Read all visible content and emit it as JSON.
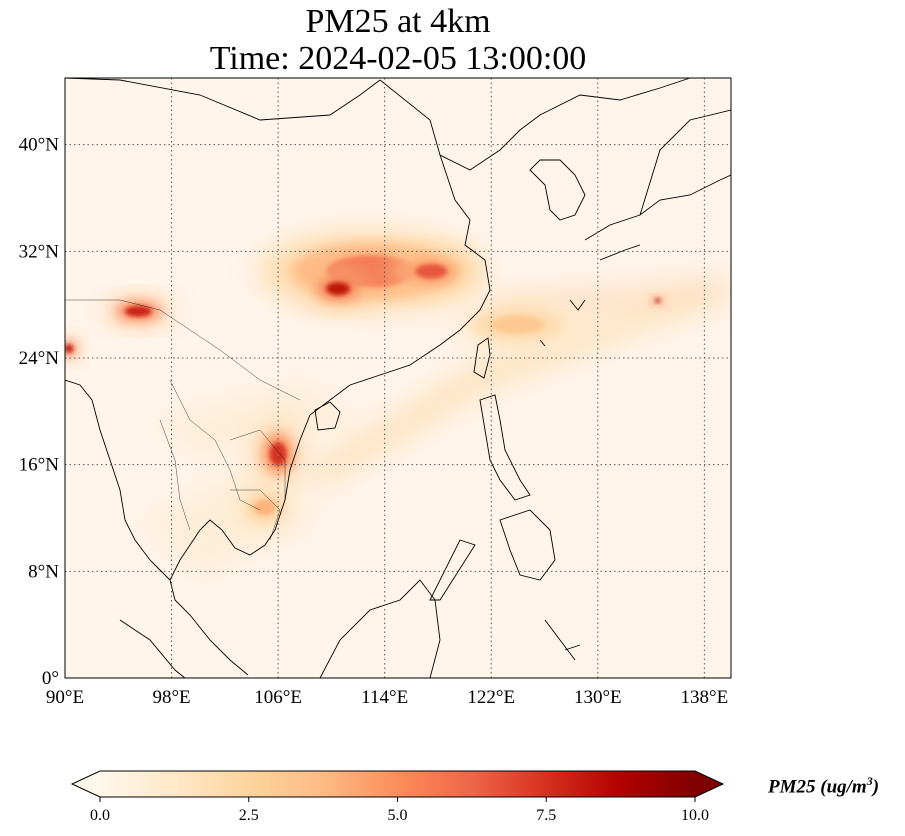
{
  "title": {
    "line1": "PM25 at 4km",
    "line2": "Time: 2024-02-05 13:00:00"
  },
  "map": {
    "lon_range": [
      90,
      140
    ],
    "lat_range": [
      0,
      45
    ],
    "lon_ticks": [
      {
        "value": 90,
        "label": "90°E"
      },
      {
        "value": 98,
        "label": "98°E"
      },
      {
        "value": 106,
        "label": "106°E"
      },
      {
        "value": 114,
        "label": "114°E"
      },
      {
        "value": 122,
        "label": "122°E"
      },
      {
        "value": 130,
        "label": "130°E"
      },
      {
        "value": 138,
        "label": "138°E"
      }
    ],
    "lat_ticks": [
      {
        "value": 0,
        "label": "0°"
      },
      {
        "value": 8,
        "label": "8°N"
      },
      {
        "value": 16,
        "label": "16°N"
      },
      {
        "value": 24,
        "label": "24°N"
      },
      {
        "value": 32,
        "label": "32°N"
      },
      {
        "value": 40,
        "label": "40°N"
      }
    ],
    "gridlines": true,
    "background_color": "#fff5eb",
    "coastline_color": "#000000"
  },
  "colorbar": {
    "colormap": "OrRd",
    "min": 0.0,
    "max": 10.0,
    "extend": "both",
    "ticks": [
      {
        "value": 0.0,
        "label": "0.0"
      },
      {
        "value": 2.5,
        "label": "2.5"
      },
      {
        "value": 5.0,
        "label": "5.0"
      },
      {
        "value": 7.5,
        "label": "7.5"
      },
      {
        "value": 10.0,
        "label": "10.0"
      }
    ],
    "label_main": "PM25 (ug/m",
    "label_sup": "3",
    "label_end": ")",
    "colors": [
      "#fff7ec",
      "#fee8c8",
      "#fdd49e",
      "#fdbb84",
      "#fc8d59",
      "#ef6548",
      "#d7301f",
      "#b30000",
      "#7f0000"
    ]
  },
  "plumes": [
    {
      "name": "eastern-china",
      "lon": 113,
      "lat": 30.5,
      "rx_deg": 8.5,
      "ry_deg": 3.0,
      "peak": 6.5
    },
    {
      "name": "hubei-core",
      "lon": 110.5,
      "lat": 29.2,
      "rx_deg": 2.2,
      "ry_deg": 1.2,
      "peak": 9.5
    },
    {
      "name": "anhui",
      "lon": 117.5,
      "lat": 30.5,
      "rx_deg": 3.0,
      "ry_deg": 1.4,
      "peak": 7.5
    },
    {
      "name": "east-china-sea-outflow",
      "lon": 124,
      "lat": 26.5,
      "rx_deg": 5.0,
      "ry_deg": 1.8,
      "peak": 3.5
    },
    {
      "name": "assam",
      "lon": 95.5,
      "lat": 27.5,
      "rx_deg": 2.5,
      "ry_deg": 1.0,
      "peak": 9.0
    },
    {
      "name": "bangladesh",
      "lon": 90.3,
      "lat": 24.7,
      "rx_deg": 0.8,
      "ry_deg": 0.8,
      "peak": 9.5
    },
    {
      "name": "laos",
      "lon": 106.0,
      "lat": 16.8,
      "rx_deg": 1.6,
      "ry_deg": 2.2,
      "peak": 8.5
    },
    {
      "name": "cambodia",
      "lon": 105.0,
      "lat": 12.8,
      "rx_deg": 2.0,
      "ry_deg": 1.5,
      "peak": 4.5
    },
    {
      "name": "japan-hotspot",
      "lon": 134.5,
      "lat": 28.3,
      "rx_deg": 0.5,
      "ry_deg": 0.4,
      "peak": 10.0
    }
  ]
}
